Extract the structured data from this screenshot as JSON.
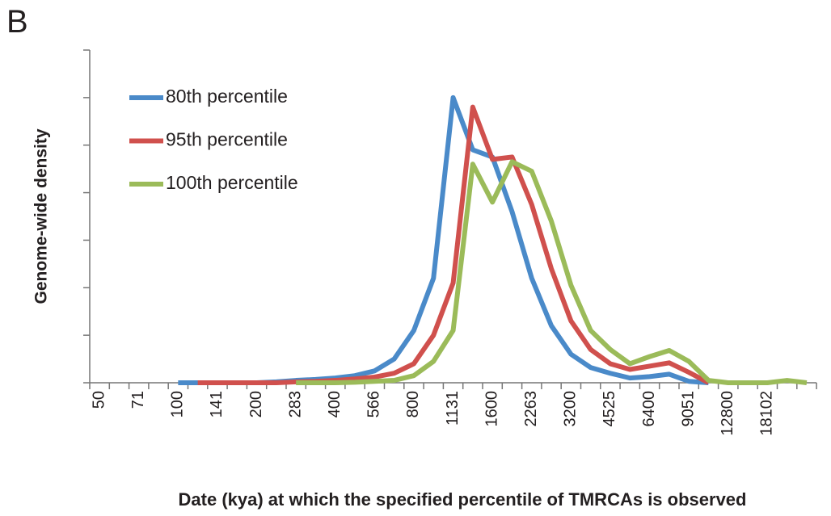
{
  "panel_label": "B",
  "chart_data": {
    "type": "line",
    "xlabel": "Date (kya) at which the specified percentile of TMRCAs is observed",
    "ylabel": "Genome-wide density",
    "categories": [
      "50",
      null,
      "71",
      null,
      "100",
      null,
      "141",
      null,
      "200",
      null,
      "283",
      null,
      "400",
      null,
      "566",
      null,
      "800",
      null,
      "1131",
      null,
      "1600",
      null,
      "2263",
      null,
      "3200",
      null,
      "4525",
      null,
      "6400",
      null,
      "9051",
      null,
      "12800",
      null,
      "18102",
      null,
      null
    ],
    "ylim": [
      0,
      7
    ],
    "yticks": [
      0,
      1,
      2,
      3,
      4,
      5,
      6,
      7
    ],
    "legend": "upper-left",
    "series": [
      {
        "name": "80th percentile",
        "color": "#4a8ac9",
        "values": [
          null,
          null,
          null,
          null,
          0,
          0,
          0,
          0,
          0,
          0.02,
          0.05,
          0.07,
          0.1,
          0.15,
          0.25,
          0.5,
          1.1,
          2.2,
          6.0,
          4.9,
          4.75,
          3.6,
          2.2,
          1.2,
          0.6,
          0.32,
          0.2,
          0.1,
          0.13,
          0.18,
          0.03,
          0,
          null,
          null,
          null,
          null,
          null
        ]
      },
      {
        "name": "95th percentile",
        "color": "#d0504d",
        "values": [
          null,
          null,
          null,
          null,
          null,
          0,
          0,
          0,
          0,
          0,
          0.02,
          0.03,
          0.05,
          0.08,
          0.12,
          0.2,
          0.4,
          1.0,
          2.1,
          5.8,
          4.7,
          4.75,
          3.75,
          2.4,
          1.3,
          0.7,
          0.4,
          0.28,
          0.35,
          0.42,
          0.22,
          0,
          null,
          null,
          null,
          null,
          null
        ]
      },
      {
        "name": "100th percentile",
        "color": "#9bbb59",
        "values": [
          null,
          null,
          null,
          null,
          null,
          null,
          null,
          null,
          null,
          null,
          0,
          0,
          0,
          0.01,
          0.03,
          0.05,
          0.15,
          0.45,
          1.1,
          4.6,
          3.8,
          4.65,
          4.45,
          3.4,
          2.05,
          1.1,
          0.7,
          0.4,
          0.55,
          0.68,
          0.45,
          0.05,
          0,
          0,
          0,
          0.05,
          0
        ]
      }
    ]
  }
}
